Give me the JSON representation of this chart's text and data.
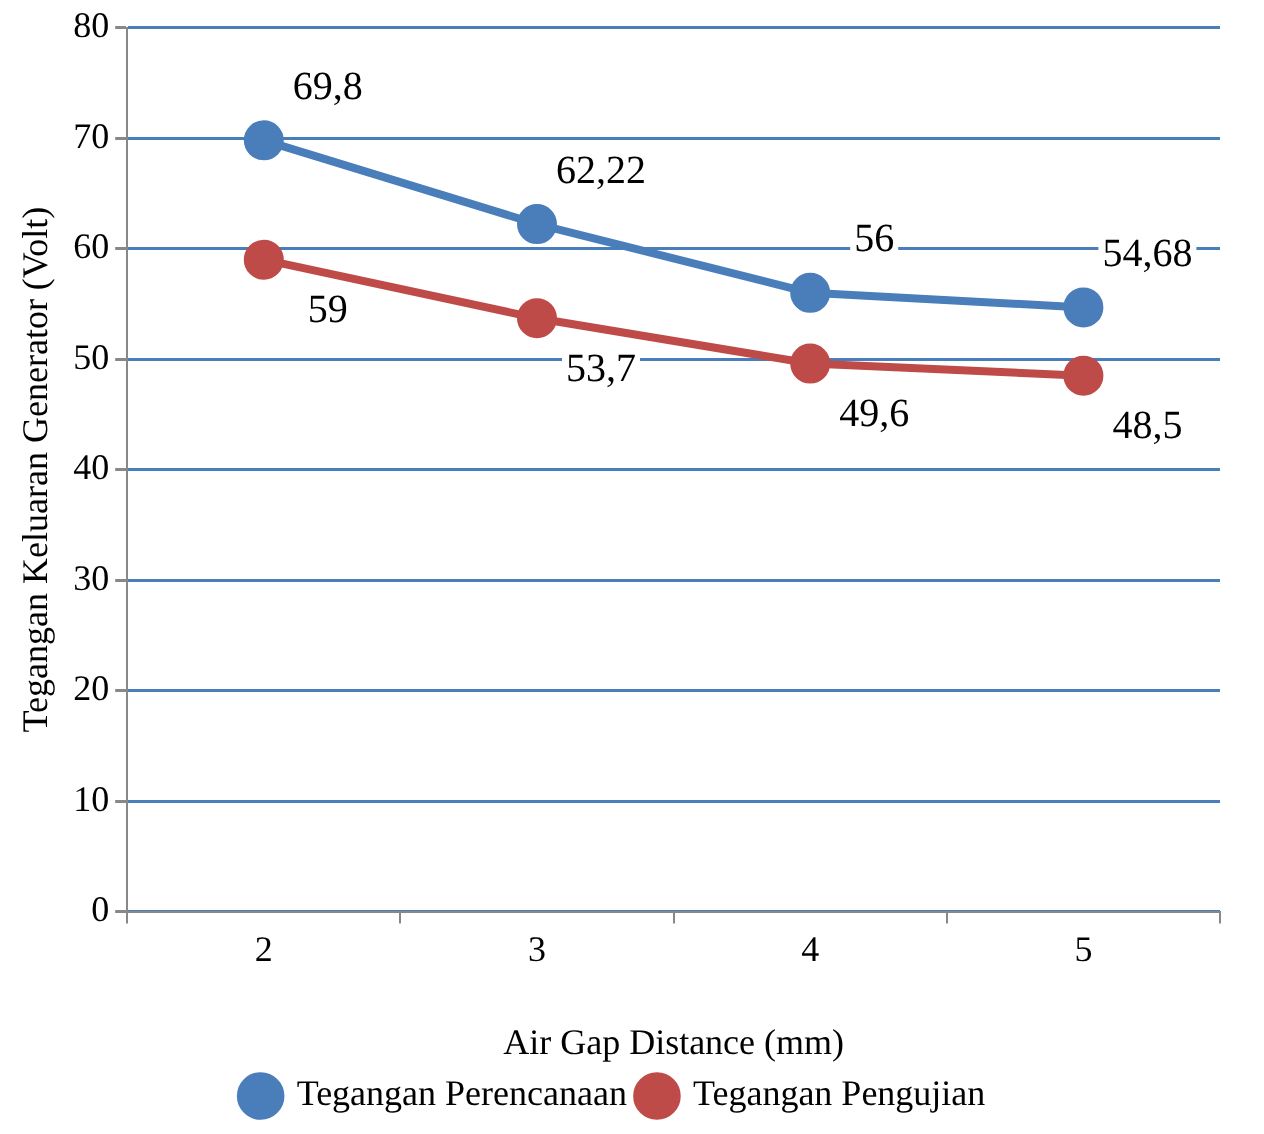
{
  "chart_data": {
    "type": "line",
    "xlabel": "Air Gap Distance (mm)",
    "ylabel": "Tegangan Keluaran Generator (Volt)",
    "categories": [
      "2",
      "3",
      "4",
      "5"
    ],
    "series": [
      {
        "name": "Tegangan Perencanaan",
        "color": "#4a7ebb",
        "values": [
          69.8,
          62.22,
          56,
          54.68
        ],
        "value_labels": [
          "69,8",
          "62,22",
          "56",
          "54,68"
        ]
      },
      {
        "name": "Tegangan Pengujian",
        "color": "#be4b48",
        "values": [
          59,
          53.7,
          49.6,
          48.5
        ],
        "value_labels": [
          "59",
          "53,7",
          "49,6",
          "48,5"
        ]
      }
    ],
    "ylim": [
      0,
      80
    ],
    "yticks": [
      0,
      10,
      20,
      30,
      40,
      50,
      60,
      70,
      80
    ],
    "grid": "y",
    "legend": "bottom",
    "marker": "circle",
    "line_style": "solid"
  }
}
